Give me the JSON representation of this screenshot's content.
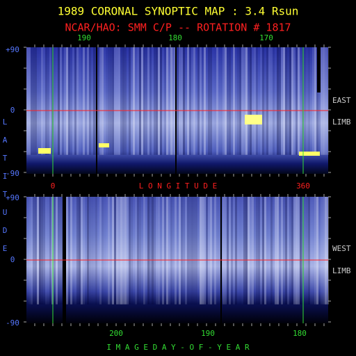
{
  "title": "1989 CORONAL SYNOPTIC MAP : 3.4 Rsun",
  "subtitle": "NCAR/HAO: SMM C/P -- ROTATION # 1817",
  "top_axis": {
    "labels": [
      "190",
      "180",
      "170"
    ]
  },
  "panels": [
    {
      "lat_labels": [
        "+90",
        "0",
        "-90"
      ],
      "side": [
        "EAST",
        "LIMB"
      ]
    },
    {
      "lat_labels": [
        "+90",
        "0",
        "-90"
      ],
      "side": [
        "WEST",
        "LIMB"
      ]
    }
  ],
  "latitude_letters": [
    "L",
    "A",
    "T",
    "I",
    "T",
    "U",
    "D",
    "E"
  ],
  "longitude": {
    "marks": [
      "0",
      "360"
    ],
    "label": "L O N G I T U D E"
  },
  "bottom_axis": {
    "labels": [
      "200",
      "190",
      "180"
    ],
    "title": "I M A G E   D A Y - O F - Y E A R"
  }
}
